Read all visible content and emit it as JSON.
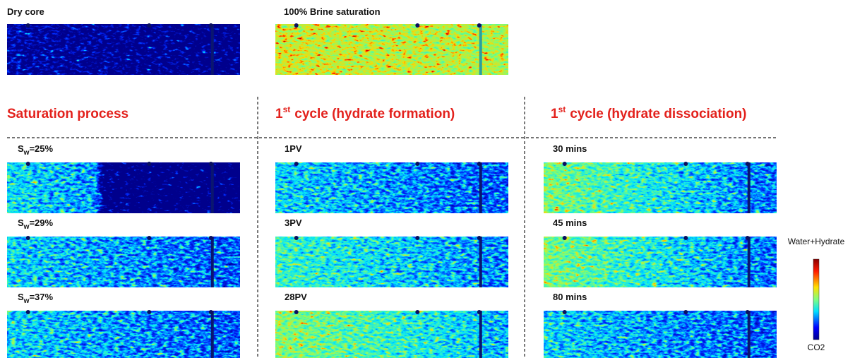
{
  "top_panels": [
    {
      "label": "Dry core"
    },
    {
      "label": "100% Brine saturation"
    }
  ],
  "columns": [
    {
      "heading": {
        "text": "Saturation process"
      },
      "panels": [
        {
          "label": {
            "main": "S",
            "subscript": "w",
            "rest": "=25%"
          }
        },
        {
          "label": {
            "main": "S",
            "subscript": "w",
            "rest": "=29%"
          }
        },
        {
          "label": {
            "main": "S",
            "subscript": "w",
            "rest": "=37%"
          }
        }
      ]
    },
    {
      "heading": {
        "number": "1",
        "superscript": "st",
        "text": "cycle (hydrate formation)"
      },
      "panels": [
        {
          "label": "1PV"
        },
        {
          "label": "3PV"
        },
        {
          "label": "28PV"
        }
      ]
    },
    {
      "heading": {
        "number": "1",
        "superscript": "st",
        "text": "cycle (hydrate dissociation)"
      },
      "panels": [
        {
          "label": "30 mins"
        },
        {
          "label": "45 mins"
        },
        {
          "label": "80 mins"
        }
      ]
    }
  ],
  "colorbar": {
    "top_label": "Water+Hydrate",
    "bottom_label": "CO2"
  }
}
